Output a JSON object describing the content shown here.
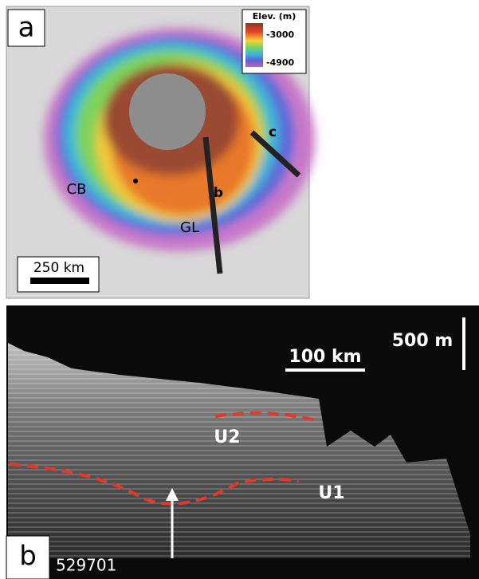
{
  "panel_a": {
    "label": "a",
    "legend": {
      "title": "Elev. (m)",
      "high": "-3000",
      "low": "-4900"
    },
    "places": [
      "CB",
      "GL"
    ],
    "tracks": [
      "b",
      "c"
    ],
    "scale_bar": "250 km"
  },
  "panel_b": {
    "label": "b",
    "track_id": "529701",
    "vertical_scale": "500 m",
    "horizontal_scale": "100 km",
    "units": [
      "U2",
      "U1"
    ]
  }
}
